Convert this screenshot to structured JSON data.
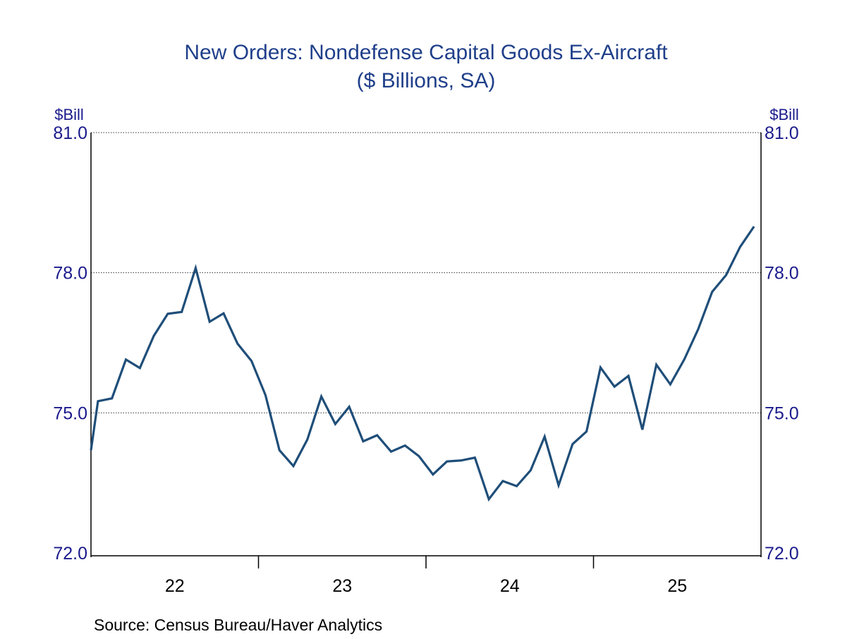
{
  "chart_data": {
    "type": "line",
    "title": "New Orders: Nondefense Capital Goods Ex-Aircraft",
    "subtitle": "($ Billions, SA)",
    "ylabel_left": "$Bill",
    "ylabel_right": "$Bill",
    "ylim": [
      72.0,
      81.0
    ],
    "yticks": [
      "81.0",
      "78.0",
      "75.0",
      "72.0"
    ],
    "ytick_values": [
      81.0,
      78.0,
      75.0,
      72.0
    ],
    "xlim": [
      2022.0,
      2026.0
    ],
    "xtick_labels": [
      "22",
      "23",
      "24",
      "25"
    ],
    "grid": true,
    "source": "Source:  Census Bureau/Haver Analytics",
    "line_color": "#1f4e79",
    "series": [
      {
        "name": "New Orders: Nondefense Capital Goods Ex-Aircraft",
        "values": [
          74.2,
          75.25,
          75.31,
          76.14,
          75.96,
          76.65,
          77.12,
          77.16,
          78.1,
          76.95,
          77.13,
          76.48,
          76.11,
          75.38,
          74.2,
          73.86,
          74.43,
          75.35,
          74.76,
          75.13,
          74.39,
          74.52,
          74.17,
          74.3,
          74.07,
          73.68,
          73.96,
          73.98,
          74.04,
          73.15,
          73.54,
          73.43,
          73.77,
          74.49,
          73.45,
          74.33,
          74.6,
          75.97,
          75.56,
          75.79,
          74.64,
          76.03,
          75.61,
          76.14,
          76.79,
          77.59,
          77.95,
          78.55,
          78.99
        ]
      }
    ]
  }
}
